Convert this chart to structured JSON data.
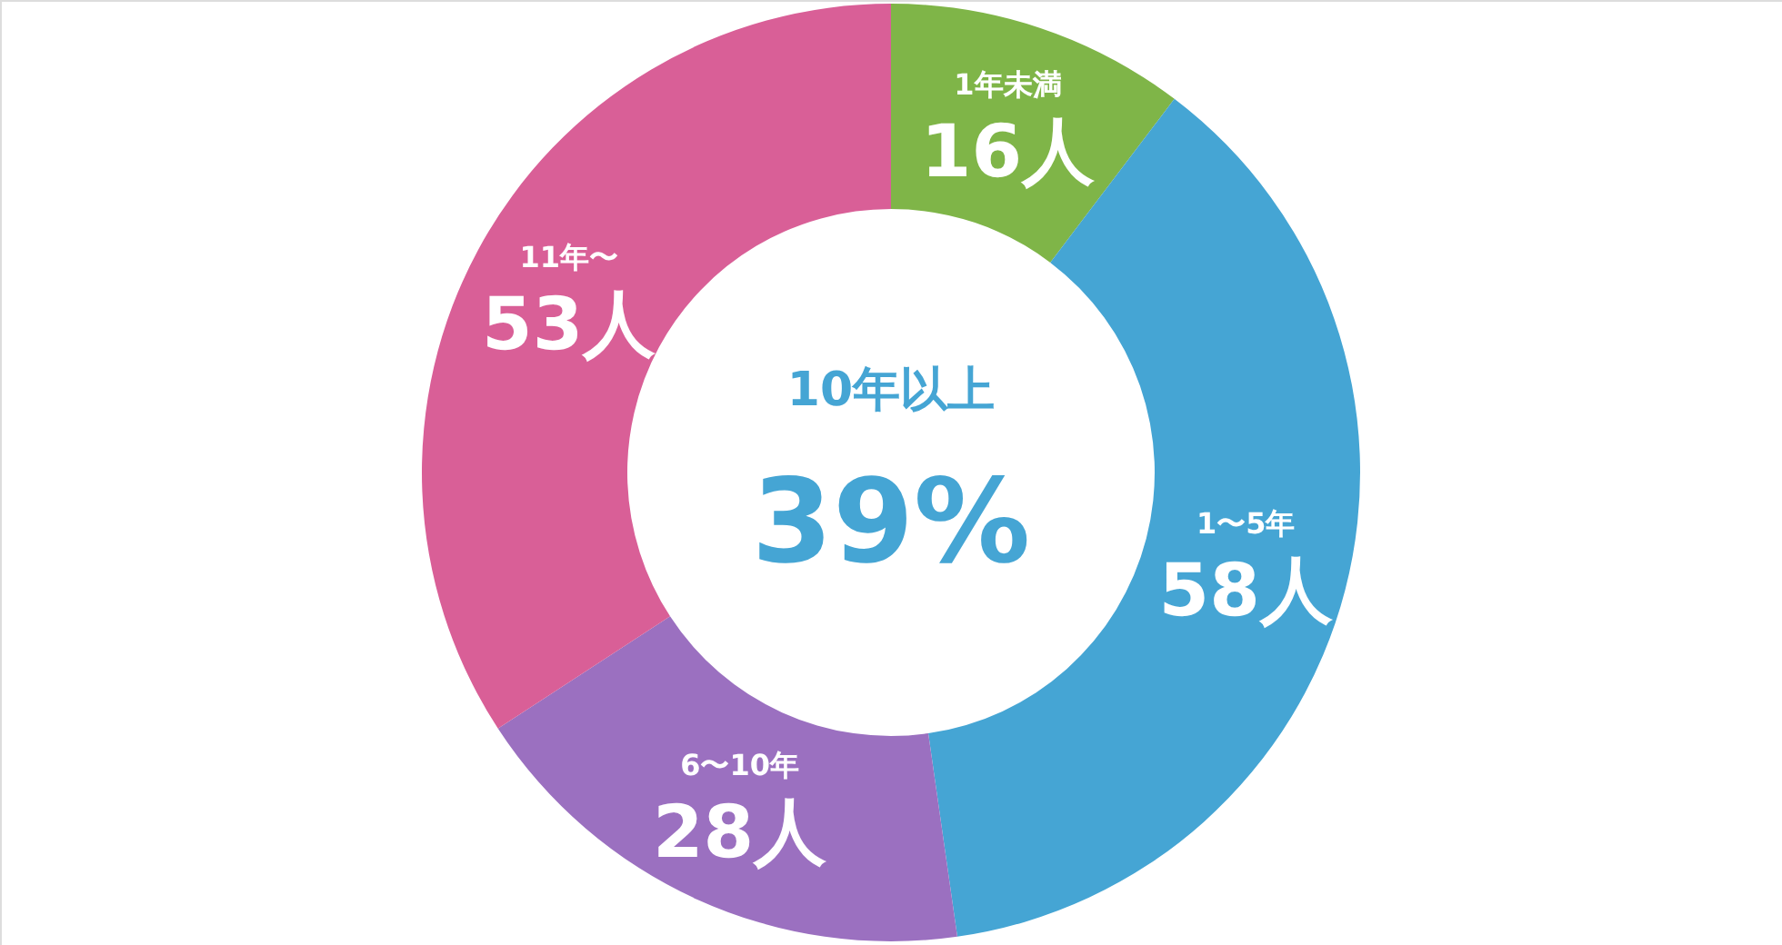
{
  "chart_data": {
    "type": "donut",
    "categories": [
      "1年未満",
      "1〜5年",
      "6〜10年",
      "11年〜"
    ],
    "values": [
      16,
      58,
      28,
      53
    ],
    "value_labels": [
      "16人",
      "58人",
      "28人",
      "53人"
    ],
    "colors": [
      "#7fb548",
      "#45a5d4",
      "#9b70c0",
      "#d95f97"
    ],
    "annotations": [
      "10年以上",
      "39%"
    ]
  }
}
